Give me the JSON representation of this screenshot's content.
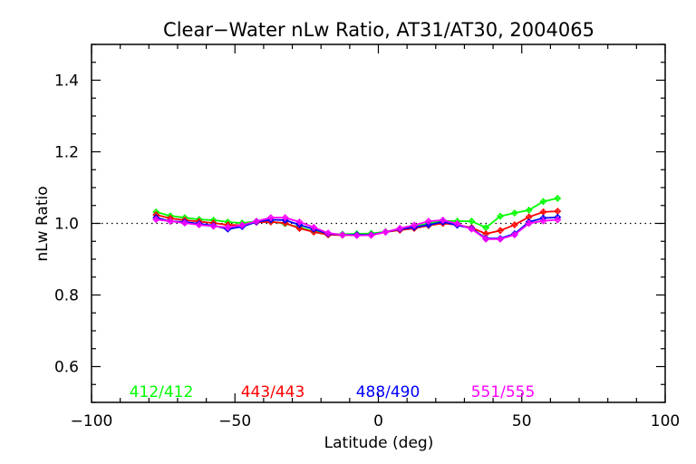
{
  "chart_data": {
    "type": "line",
    "title": "Clear−Water nLw Ratio, AT31/AT30, 2004065",
    "xlabel": "Latitude (deg)",
    "ylabel": "nLw Ratio",
    "xlim": [
      -100,
      100
    ],
    "ylim": [
      0.5,
      1.5
    ],
    "x_ticks": [
      -100,
      -50,
      0,
      50,
      100
    ],
    "x_tick_labels": [
      "−100",
      "−50",
      "0",
      "50",
      "100"
    ],
    "x_minor_step": 10,
    "y_ticks": [
      0.6,
      0.8,
      1.0,
      1.2,
      1.4
    ],
    "y_tick_labels": [
      "0.6",
      "0.8",
      "1.0",
      "1.2",
      "1.4"
    ],
    "y_minor_step": 0.05,
    "reference_line": 1.0,
    "grid": false,
    "legend_placement": "bottom-inside",
    "x": [
      -77.5,
      -72.5,
      -67.5,
      -62.5,
      -57.5,
      -52.5,
      -47.5,
      -42.5,
      -37.5,
      -32.5,
      -27.5,
      -22.5,
      -17.5,
      -12.5,
      -7.5,
      -2.5,
      2.5,
      7.5,
      12.5,
      17.5,
      22.5,
      27.5,
      32.5,
      37.5,
      42.5,
      47.5,
      52.5,
      57.5,
      62.5
    ],
    "series": [
      {
        "name": "412/412",
        "color": "#00ff00",
        "values": [
          1.032,
          1.021,
          1.016,
          1.011,
          1.009,
          1.004,
          1.001,
          1.006,
          1.005,
          0.999,
          0.989,
          0.978,
          0.971,
          0.97,
          0.971,
          0.972,
          0.977,
          0.984,
          0.991,
          1.0,
          1.007,
          1.006,
          1.006,
          0.988,
          1.02,
          1.029,
          1.037,
          1.061,
          1.07
        ]
      },
      {
        "name": "443/443",
        "color": "#ff0000",
        "values": [
          1.024,
          1.014,
          1.009,
          1.005,
          1.001,
          0.996,
          0.995,
          1.003,
          1.004,
          1.001,
          0.986,
          0.976,
          0.968,
          0.967,
          0.967,
          0.967,
          0.976,
          0.981,
          0.986,
          0.994,
          1.0,
          0.996,
          0.988,
          0.971,
          0.98,
          0.996,
          1.018,
          1.032,
          1.034
        ]
      },
      {
        "name": "488/490",
        "color": "#0000ff",
        "values": [
          1.016,
          1.006,
          1.004,
          0.999,
          0.994,
          0.984,
          0.991,
          1.004,
          1.01,
          1.009,
          0.996,
          0.984,
          0.971,
          0.968,
          0.968,
          0.968,
          0.976,
          0.984,
          0.989,
          0.996,
          1.004,
          0.995,
          0.986,
          0.958,
          0.958,
          0.971,
          1.004,
          1.015,
          1.017
        ]
      },
      {
        "name": "551/555",
        "color": "#ff00ff",
        "values": [
          1.011,
          1.006,
          1.001,
          0.996,
          0.992,
          0.989,
          0.995,
          1.006,
          1.016,
          1.016,
          1.004,
          0.989,
          0.973,
          0.968,
          0.966,
          0.967,
          0.976,
          0.986,
          0.995,
          1.006,
          1.009,
          0.999,
          0.984,
          0.956,
          0.956,
          0.968,
          1.0,
          1.007,
          1.01
        ]
      }
    ]
  },
  "colors": {
    "axis": "#000000",
    "background": "#ffffff"
  }
}
